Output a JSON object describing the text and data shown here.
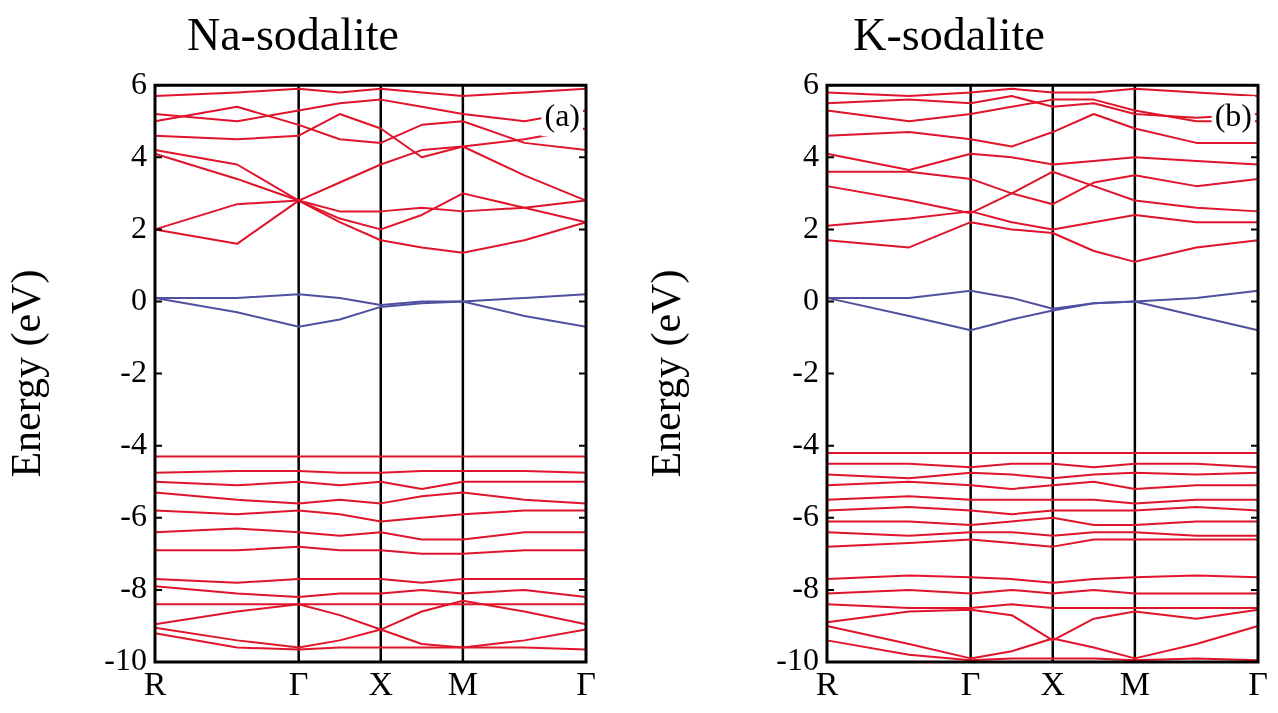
{
  "chart_data": [
    {
      "type": "line",
      "title": "Na-sodalite",
      "ylabel": "Energy (eV)",
      "annotations": [
        "(a)"
      ],
      "categories": [
        "R",
        null,
        null,
        null,
        null,
        null,
        null,
        "Γ",
        null,
        null,
        null,
        "X",
        null,
        null,
        null,
        "M",
        null,
        null,
        null,
        null,
        null,
        "Γ"
      ],
      "ylim": [
        -10,
        6
      ],
      "yticks": [
        -10,
        -8,
        -6,
        -4,
        -2,
        0,
        2,
        4,
        6
      ],
      "ref_lines": [
        {
          "axis": "x",
          "value": "Γ",
          "color": "#000000"
        },
        {
          "axis": "x",
          "value": "X",
          "color": "#000000"
        },
        {
          "axis": "x",
          "value": "M",
          "color": "#000000"
        }
      ],
      "series": [
        {
          "color": "#5050a0",
          "values": [
            0.1,
            null,
            null,
            null,
            0.1,
            null,
            null,
            0.2,
            null,
            0.1,
            null,
            -0.1,
            null,
            0.0,
            null,
            0.0,
            null,
            null,
            0.1,
            null,
            null,
            0.2
          ]
        },
        {
          "color": "#5050a0",
          "values": [
            0.1,
            null,
            null,
            null,
            -0.3,
            null,
            null,
            -0.7,
            null,
            -0.5,
            null,
            -0.15,
            null,
            -0.05,
            null,
            0.0,
            null,
            null,
            -0.4,
            null,
            null,
            -0.7
          ]
        },
        {
          "color": "#e0142a",
          "values": [
            2.0,
            null,
            null,
            null,
            1.6,
            null,
            null,
            2.8,
            null,
            2.2,
            null,
            1.7,
            null,
            1.5,
            null,
            1.35,
            null,
            null,
            1.7,
            null,
            null,
            2.2
          ]
        },
        {
          "color": "#e0142a",
          "values": [
            2.0,
            null,
            null,
            null,
            2.7,
            null,
            null,
            2.8,
            null,
            2.5,
            null,
            2.5,
            null,
            2.6,
            null,
            2.5,
            null,
            null,
            2.6,
            null,
            null,
            2.8
          ]
        },
        {
          "color": "#e0142a",
          "values": [
            4.1,
            null,
            null,
            null,
            3.4,
            null,
            null,
            2.8,
            null,
            3.3,
            null,
            3.8,
            null,
            4.2,
            null,
            4.3,
            null,
            null,
            3.5,
            null,
            null,
            2.8
          ]
        },
        {
          "color": "#e0142a",
          "values": [
            4.2,
            null,
            null,
            null,
            3.8,
            null,
            null,
            2.8,
            null,
            2.3,
            null,
            2.0,
            null,
            2.4,
            null,
            3.0,
            null,
            null,
            2.6,
            null,
            null,
            2.2
          ]
        },
        {
          "color": "#e0142a",
          "values": [
            4.6,
            null,
            null,
            null,
            4.5,
            null,
            null,
            4.6,
            null,
            5.2,
            null,
            4.8,
            null,
            4.0,
            null,
            4.3,
            null,
            null,
            4.5,
            null,
            null,
            4.8
          ]
        },
        {
          "color": "#e0142a",
          "values": [
            5.2,
            null,
            null,
            null,
            5.0,
            null,
            null,
            5.3,
            null,
            5.5,
            null,
            5.6,
            null,
            5.4,
            null,
            5.2,
            null,
            null,
            5.0,
            null,
            null,
            5.3
          ]
        },
        {
          "color": "#e0142a",
          "values": [
            5.7,
            null,
            null,
            null,
            5.8,
            null,
            null,
            5.9,
            null,
            5.8,
            null,
            5.9,
            null,
            5.8,
            null,
            5.7,
            null,
            null,
            5.8,
            null,
            null,
            5.9
          ]
        },
        {
          "color": "#e0142a",
          "values": [
            5.0,
            null,
            null,
            null,
            5.4,
            null,
            null,
            4.9,
            null,
            4.5,
            null,
            4.4,
            null,
            4.9,
            null,
            5.0,
            null,
            null,
            4.4,
            null,
            null,
            4.2
          ]
        },
        {
          "color": "#e0142a",
          "values": [
            -4.3,
            null,
            null,
            null,
            -4.3,
            null,
            null,
            -4.3,
            null,
            -4.3,
            null,
            -4.3,
            null,
            -4.3,
            null,
            -4.3,
            null,
            null,
            -4.3,
            null,
            null,
            -4.3
          ]
        },
        {
          "color": "#e0142a",
          "values": [
            -4.75,
            null,
            null,
            null,
            -4.7,
            null,
            null,
            -4.7,
            null,
            -4.75,
            null,
            -4.75,
            null,
            -4.7,
            null,
            -4.7,
            null,
            null,
            -4.7,
            null,
            null,
            -4.75
          ]
        },
        {
          "color": "#e0142a",
          "values": [
            -5.0,
            null,
            null,
            null,
            -5.1,
            null,
            null,
            -5.0,
            null,
            -5.1,
            null,
            -5.0,
            null,
            -5.2,
            null,
            -5.0,
            null,
            null,
            -5.0,
            null,
            null,
            -5.0
          ]
        },
        {
          "color": "#e0142a",
          "values": [
            -5.3,
            null,
            null,
            null,
            -5.5,
            null,
            null,
            -5.6,
            null,
            -5.5,
            null,
            -5.6,
            null,
            -5.4,
            null,
            -5.3,
            null,
            null,
            -5.5,
            null,
            null,
            -5.6
          ]
        },
        {
          "color": "#e0142a",
          "values": [
            -5.8,
            null,
            null,
            null,
            -5.9,
            null,
            null,
            -5.8,
            null,
            -5.9,
            null,
            -6.1,
            null,
            -6.0,
            null,
            -5.9,
            null,
            null,
            -5.8,
            null,
            null,
            -5.8
          ]
        },
        {
          "color": "#e0142a",
          "values": [
            -6.4,
            null,
            null,
            null,
            -6.3,
            null,
            null,
            -6.4,
            null,
            -6.5,
            null,
            -6.4,
            null,
            -6.6,
            null,
            -6.6,
            null,
            null,
            -6.4,
            null,
            null,
            -6.4
          ]
        },
        {
          "color": "#e0142a",
          "values": [
            -6.9,
            null,
            null,
            null,
            -6.9,
            null,
            null,
            -6.8,
            null,
            -6.9,
            null,
            -6.9,
            null,
            -7.0,
            null,
            -7.0,
            null,
            null,
            -6.9,
            null,
            null,
            -6.9
          ]
        },
        {
          "color": "#e0142a",
          "values": [
            -7.7,
            null,
            null,
            null,
            -7.8,
            null,
            null,
            -7.7,
            null,
            -7.7,
            null,
            -7.7,
            null,
            -7.8,
            null,
            -7.7,
            null,
            null,
            -7.7,
            null,
            null,
            -7.7
          ]
        },
        {
          "color": "#e0142a",
          "values": [
            -7.9,
            null,
            null,
            null,
            -8.1,
            null,
            null,
            -8.2,
            null,
            -8.1,
            null,
            -8.1,
            null,
            -8.0,
            null,
            -8.1,
            null,
            null,
            -8.0,
            null,
            null,
            -8.2
          ]
        },
        {
          "color": "#e0142a",
          "values": [
            -8.4,
            null,
            null,
            null,
            -8.4,
            null,
            null,
            -8.4,
            null,
            -8.4,
            null,
            -8.4,
            null,
            -8.4,
            null,
            -8.4,
            null,
            null,
            -8.4,
            null,
            null,
            -8.4
          ]
        },
        {
          "color": "#e0142a",
          "values": [
            -8.95,
            null,
            null,
            null,
            -8.6,
            null,
            null,
            -8.4,
            null,
            -8.7,
            null,
            -9.1,
            null,
            -8.6,
            null,
            -8.3,
            null,
            null,
            -8.6,
            null,
            null,
            -8.95
          ]
        },
        {
          "color": "#e0142a",
          "values": [
            -9.05,
            null,
            null,
            null,
            -9.4,
            null,
            null,
            -9.6,
            null,
            -9.4,
            null,
            -9.1,
            null,
            -9.5,
            null,
            -9.6,
            null,
            null,
            -9.4,
            null,
            null,
            -9.1
          ]
        },
        {
          "color": "#e0142a",
          "values": [
            -9.2,
            null,
            null,
            null,
            -9.6,
            null,
            null,
            -9.65,
            null,
            -9.6,
            null,
            -9.6,
            null,
            -9.6,
            null,
            -9.6,
            null,
            null,
            -9.6,
            null,
            null,
            -9.65
          ]
        }
      ]
    },
    {
      "type": "line",
      "title": "K-sodalite",
      "ylabel": "Energy (eV)",
      "annotations": [
        "(b)"
      ],
      "categories": [
        "R",
        null,
        null,
        null,
        null,
        null,
        null,
        "Γ",
        null,
        null,
        null,
        "X",
        null,
        null,
        null,
        "M",
        null,
        null,
        null,
        null,
        null,
        "Γ"
      ],
      "ylim": [
        -10,
        6
      ],
      "yticks": [
        -10,
        -8,
        -6,
        -4,
        -2,
        0,
        2,
        4,
        6
      ],
      "ref_lines": [
        {
          "axis": "x",
          "value": "Γ",
          "color": "#000000"
        },
        {
          "axis": "x",
          "value": "X",
          "color": "#000000"
        },
        {
          "axis": "x",
          "value": "M",
          "color": "#000000"
        }
      ],
      "series": [
        {
          "color": "#5050a0",
          "values": [
            0.1,
            null,
            null,
            null,
            0.1,
            null,
            null,
            0.3,
            null,
            0.1,
            null,
            -0.2,
            null,
            -0.05,
            null,
            0.0,
            null,
            null,
            0.1,
            null,
            null,
            0.3
          ]
        },
        {
          "color": "#5050a0",
          "values": [
            0.1,
            null,
            null,
            null,
            -0.4,
            null,
            null,
            -0.8,
            null,
            -0.5,
            null,
            -0.25,
            null,
            -0.05,
            null,
            0.0,
            null,
            null,
            -0.4,
            null,
            null,
            -0.8
          ]
        },
        {
          "color": "#e0142a",
          "values": [
            1.7,
            null,
            null,
            null,
            1.5,
            null,
            null,
            2.2,
            null,
            2.0,
            null,
            1.9,
            null,
            1.4,
            null,
            1.1,
            null,
            null,
            1.5,
            null,
            null,
            1.7
          ]
        },
        {
          "color": "#e0142a",
          "values": [
            2.1,
            null,
            null,
            null,
            2.3,
            null,
            null,
            2.5,
            null,
            2.2,
            null,
            2.0,
            null,
            2.2,
            null,
            2.4,
            null,
            null,
            2.2,
            null,
            null,
            2.2
          ]
        },
        {
          "color": "#e0142a",
          "values": [
            3.2,
            null,
            null,
            null,
            2.8,
            null,
            null,
            2.45,
            null,
            3.0,
            null,
            3.6,
            null,
            3.2,
            null,
            2.8,
            null,
            null,
            2.6,
            null,
            null,
            2.5
          ]
        },
        {
          "color": "#e0142a",
          "values": [
            3.6,
            null,
            null,
            null,
            3.6,
            null,
            null,
            3.4,
            null,
            3.0,
            null,
            2.7,
            null,
            3.3,
            null,
            3.5,
            null,
            null,
            3.2,
            null,
            null,
            3.4
          ]
        },
        {
          "color": "#e0142a",
          "values": [
            4.1,
            null,
            null,
            null,
            3.65,
            null,
            null,
            4.1,
            null,
            4.0,
            null,
            3.8,
            null,
            3.9,
            null,
            4.0,
            null,
            null,
            3.9,
            null,
            null,
            3.8
          ]
        },
        {
          "color": "#e0142a",
          "values": [
            4.6,
            null,
            null,
            null,
            4.7,
            null,
            null,
            4.5,
            null,
            4.3,
            null,
            4.7,
            null,
            5.2,
            null,
            4.8,
            null,
            null,
            4.4,
            null,
            null,
            4.4
          ]
        },
        {
          "color": "#e0142a",
          "values": [
            5.3,
            null,
            null,
            null,
            5.0,
            null,
            null,
            5.2,
            null,
            5.4,
            null,
            5.6,
            null,
            5.6,
            null,
            5.3,
            null,
            null,
            5.0,
            null,
            null,
            5.0
          ]
        },
        {
          "color": "#e0142a",
          "values": [
            5.8,
            null,
            null,
            null,
            5.7,
            null,
            null,
            5.8,
            null,
            5.9,
            null,
            5.8,
            null,
            5.8,
            null,
            5.9,
            null,
            null,
            5.8,
            null,
            null,
            5.7
          ]
        },
        {
          "color": "#e0142a",
          "values": [
            5.5,
            null,
            null,
            null,
            5.6,
            null,
            null,
            5.5,
            null,
            5.7,
            null,
            5.4,
            null,
            5.5,
            null,
            5.2,
            null,
            null,
            5.1,
            null,
            null,
            5.2
          ]
        },
        {
          "color": "#e0142a",
          "values": [
            -4.2,
            null,
            null,
            null,
            -4.2,
            null,
            null,
            -4.2,
            null,
            -4.2,
            null,
            -4.2,
            null,
            -4.2,
            null,
            -4.2,
            null,
            null,
            -4.2,
            null,
            null,
            -4.2
          ]
        },
        {
          "color": "#e0142a",
          "values": [
            -4.5,
            null,
            null,
            null,
            -4.5,
            null,
            null,
            -4.6,
            null,
            -4.5,
            null,
            -4.5,
            null,
            -4.6,
            null,
            -4.5,
            null,
            null,
            -4.5,
            null,
            null,
            -4.6
          ]
        },
        {
          "color": "#e0142a",
          "values": [
            -4.8,
            null,
            null,
            null,
            -4.9,
            null,
            null,
            -4.75,
            null,
            -4.8,
            null,
            -4.9,
            null,
            -4.8,
            null,
            -4.75,
            null,
            null,
            -4.8,
            null,
            null,
            -4.75
          ]
        },
        {
          "color": "#e0142a",
          "values": [
            -5.1,
            null,
            null,
            null,
            -5.0,
            null,
            null,
            -5.1,
            null,
            -5.2,
            null,
            -5.1,
            null,
            -5.0,
            null,
            -5.2,
            null,
            null,
            -5.1,
            null,
            null,
            -5.1
          ]
        },
        {
          "color": "#e0142a",
          "values": [
            -5.5,
            null,
            null,
            null,
            -5.4,
            null,
            null,
            -5.5,
            null,
            -5.5,
            null,
            -5.5,
            null,
            -5.5,
            null,
            -5.6,
            null,
            null,
            -5.5,
            null,
            null,
            -5.5
          ]
        },
        {
          "color": "#e0142a",
          "values": [
            -5.8,
            null,
            null,
            null,
            -5.7,
            null,
            null,
            -5.8,
            null,
            -5.9,
            null,
            -5.8,
            null,
            -5.8,
            null,
            -5.8,
            null,
            null,
            -5.7,
            null,
            null,
            -5.8
          ]
        },
        {
          "color": "#e0142a",
          "values": [
            -6.1,
            null,
            null,
            null,
            -6.1,
            null,
            null,
            -6.2,
            null,
            -6.1,
            null,
            -6.0,
            null,
            -6.2,
            null,
            -6.2,
            null,
            null,
            -6.1,
            null,
            null,
            -6.1
          ]
        },
        {
          "color": "#e0142a",
          "values": [
            -6.4,
            null,
            null,
            null,
            -6.5,
            null,
            null,
            -6.4,
            null,
            -6.4,
            null,
            -6.5,
            null,
            -6.4,
            null,
            -6.4,
            null,
            null,
            -6.5,
            null,
            null,
            -6.5
          ]
        },
        {
          "color": "#e0142a",
          "values": [
            -6.8,
            null,
            null,
            null,
            -6.7,
            null,
            null,
            -6.6,
            null,
            -6.7,
            null,
            -6.8,
            null,
            -6.6,
            null,
            -6.6,
            null,
            null,
            -6.6,
            null,
            null,
            -6.6
          ]
        },
        {
          "color": "#e0142a",
          "values": [
            -7.7,
            null,
            null,
            null,
            -7.6,
            null,
            null,
            -7.65,
            null,
            -7.7,
            null,
            -7.8,
            null,
            -7.7,
            null,
            -7.65,
            null,
            null,
            -7.6,
            null,
            null,
            -7.65
          ]
        },
        {
          "color": "#e0142a",
          "values": [
            -8.1,
            null,
            null,
            null,
            -8.0,
            null,
            null,
            -8.1,
            null,
            -8.0,
            null,
            -8.1,
            null,
            -8.0,
            null,
            -8.1,
            null,
            null,
            -8.1,
            null,
            null,
            -8.1
          ]
        },
        {
          "color": "#e0142a",
          "values": [
            -8.4,
            null,
            null,
            null,
            -8.5,
            null,
            null,
            -8.5,
            null,
            -8.4,
            null,
            -8.5,
            null,
            -8.5,
            null,
            -8.5,
            null,
            null,
            -8.5,
            null,
            null,
            -8.5
          ]
        },
        {
          "color": "#e0142a",
          "values": [
            -8.9,
            null,
            null,
            null,
            -8.6,
            null,
            null,
            -8.55,
            null,
            -8.7,
            null,
            -9.4,
            null,
            -8.8,
            null,
            -8.6,
            null,
            null,
            -8.8,
            null,
            null,
            -8.55
          ]
        },
        {
          "color": "#e0142a",
          "values": [
            -9.0,
            null,
            null,
            null,
            -9.5,
            null,
            null,
            -9.9,
            null,
            -9.7,
            null,
            -9.35,
            null,
            -9.6,
            null,
            -9.9,
            null,
            null,
            -9.5,
            null,
            null,
            -9.0
          ]
        },
        {
          "color": "#e0142a",
          "values": [
            -9.4,
            null,
            null,
            null,
            -9.8,
            null,
            null,
            -9.95,
            null,
            -9.9,
            null,
            -9.9,
            null,
            -9.9,
            null,
            -9.95,
            null,
            null,
            -9.9,
            null,
            null,
            -9.95
          ]
        }
      ]
    }
  ]
}
